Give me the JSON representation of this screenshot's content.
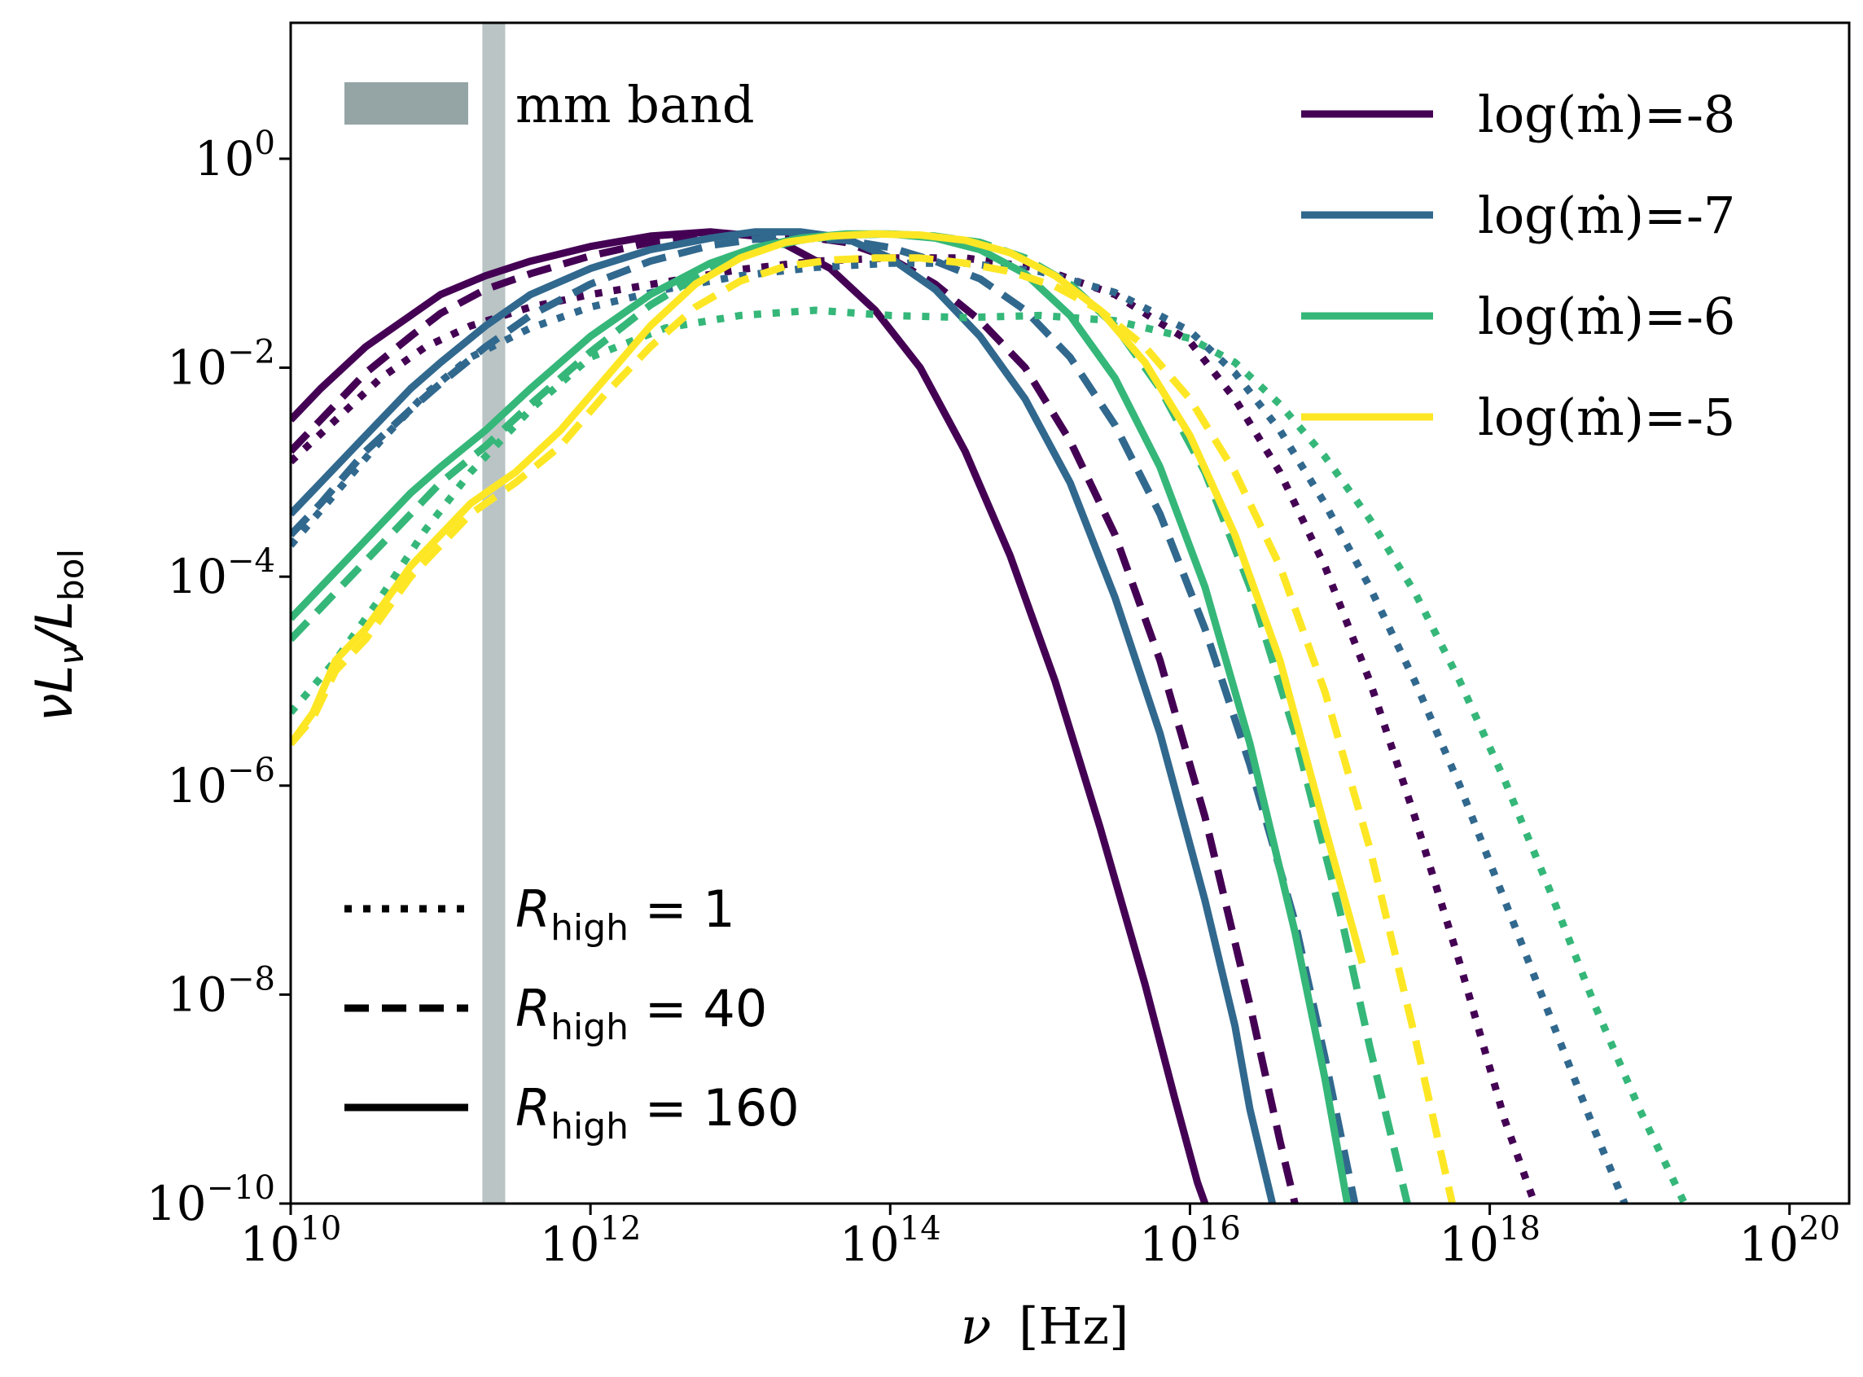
{
  "chart_data": {
    "type": "line",
    "xscale": "log",
    "yscale": "log",
    "xlim": [
      10000000000.0,
      2.5e+20
    ],
    "ylim": [
      1e-10,
      20.0
    ],
    "xlabel_symbol": "ν",
    "xlabel_unit": "[Hz]",
    "ylabel": "νLν/Lbol",
    "x_ticks": [
      {
        "base": "10",
        "exp": "10",
        "value": 10000000000.0
      },
      {
        "base": "10",
        "exp": "12",
        "value": 1000000000000.0
      },
      {
        "base": "10",
        "exp": "14",
        "value": 100000000000000.0
      },
      {
        "base": "10",
        "exp": "16",
        "value": 1e+16
      },
      {
        "base": "10",
        "exp": "18",
        "value": 1e+18
      },
      {
        "base": "10",
        "exp": "20",
        "value": 1e+20
      }
    ],
    "y_ticks": [
      {
        "base": "10",
        "exp": "−10",
        "value": 1e-10
      },
      {
        "base": "10",
        "exp": "−8",
        "value": 1e-08
      },
      {
        "base": "10",
        "exp": "−6",
        "value": 1e-06
      },
      {
        "base": "10",
        "exp": "−4",
        "value": 0.0001
      },
      {
        "base": "10",
        "exp": "−2",
        "value": 0.01
      },
      {
        "base": "10",
        "exp": "0",
        "value": 1
      }
    ],
    "band": {
      "label": "mm band",
      "x_from": 190000000000.0,
      "x_to": 270000000000.0,
      "color": "#95a5a6"
    },
    "colors": {
      "-8": "#440154",
      "-7": "#31688e",
      "-6": "#35b779",
      "-5": "#fde725"
    },
    "legend_mdot": [
      {
        "label": "log(ṁ)=-8",
        "key": "-8"
      },
      {
        "label": "log(ṁ)=-7",
        "key": "-7"
      },
      {
        "label": "log(ṁ)=-6",
        "key": "-6"
      },
      {
        "label": "log(ṁ)=-5",
        "key": "-5"
      }
    ],
    "legend_rhigh": [
      {
        "label_sym": "R",
        "label_sub": "high",
        "label_val": "= 1",
        "style": "dotted"
      },
      {
        "label_sym": "R",
        "label_sub": "high",
        "label_val": "= 40",
        "style": "dashed"
      },
      {
        "label_sym": "R",
        "label_sub": "high",
        "label_val": "= 160",
        "style": "solid"
      }
    ],
    "series": [
      {
        "name": "log(ṁ)=-8, R_high=160",
        "mdot": "-8",
        "style": "solid",
        "x": [
          10,
          10.2,
          10.5,
          10.8,
          11,
          11.3,
          11.6,
          12,
          12.4,
          12.8,
          13.1,
          13.3,
          13.6,
          13.9,
          14.2,
          14.5,
          14.8,
          15.1,
          15.4,
          15.7,
          15.9,
          16.05,
          16.1
        ],
        "y": [
          -2.5,
          -2.2,
          -1.8,
          -1.5,
          -1.3,
          -1.12,
          -0.98,
          -0.84,
          -0.74,
          -0.7,
          -0.74,
          -0.82,
          -1.05,
          -1.45,
          -2.0,
          -2.8,
          -3.8,
          -5.0,
          -6.4,
          -7.9,
          -9.0,
          -9.8,
          -10
        ]
      },
      {
        "name": "log(ṁ)=-8, R_high=40",
        "mdot": "-8",
        "style": "dashed",
        "x": [
          10,
          10.2,
          10.5,
          10.8,
          11,
          11.3,
          11.6,
          12,
          12.4,
          12.8,
          13.1,
          13.4,
          13.7,
          14.0,
          14.3,
          14.6,
          14.9,
          15.2,
          15.5,
          15.8,
          16.1,
          16.4,
          16.6,
          16.7
        ],
        "y": [
          -2.8,
          -2.5,
          -2.05,
          -1.7,
          -1.48,
          -1.25,
          -1.1,
          -0.93,
          -0.8,
          -0.74,
          -0.72,
          -0.74,
          -0.8,
          -0.95,
          -1.2,
          -1.55,
          -2.0,
          -2.7,
          -3.6,
          -4.8,
          -6.3,
          -8.1,
          -9.4,
          -10
        ]
      },
      {
        "name": "log(ṁ)=-8, R_high=1",
        "mdot": "-8",
        "style": "dotted",
        "x": [
          10,
          10.3,
          10.6,
          10.9,
          11.2,
          11.6,
          12,
          12.5,
          13,
          13.5,
          14,
          14.5,
          15,
          15.5,
          16,
          16.3,
          16.6,
          16.9,
          17.2,
          17.5,
          17.8,
          18.1,
          18.3
        ],
        "y": [
          -2.9,
          -2.5,
          -2.1,
          -1.8,
          -1.6,
          -1.42,
          -1.3,
          -1.18,
          -1.06,
          -0.98,
          -0.95,
          -0.95,
          -1.05,
          -1.3,
          -1.75,
          -2.3,
          -3.0,
          -3.9,
          -5.0,
          -6.3,
          -7.7,
          -9.2,
          -10
        ]
      },
      {
        "name": "log(ṁ)=-7, R_high=160",
        "mdot": "-7",
        "style": "solid",
        "x": [
          10,
          10.2,
          10.5,
          10.8,
          11,
          11.3,
          11.6,
          12,
          12.4,
          12.8,
          13.1,
          13.4,
          13.7,
          14.0,
          14.3,
          14.6,
          14.9,
          15.2,
          15.5,
          15.8,
          16.1,
          16.3,
          16.4,
          16.55
        ],
        "y": [
          -3.4,
          -3.1,
          -2.65,
          -2.2,
          -1.95,
          -1.6,
          -1.3,
          -1.05,
          -0.87,
          -0.76,
          -0.7,
          -0.7,
          -0.76,
          -0.95,
          -1.25,
          -1.7,
          -2.3,
          -3.1,
          -4.2,
          -5.5,
          -7.1,
          -8.3,
          -9.1,
          -10
        ]
      },
      {
        "name": "log(ṁ)=-7, R_high=40",
        "mdot": "-7",
        "style": "dashed",
        "x": [
          10,
          10.2,
          10.5,
          10.8,
          11,
          11.3,
          11.6,
          12,
          12.4,
          12.8,
          13.1,
          13.4,
          13.7,
          14.0,
          14.3,
          14.6,
          14.9,
          15.2,
          15.5,
          15.8,
          16.1,
          16.4,
          16.7,
          16.9,
          17.1
        ],
        "y": [
          -3.6,
          -3.3,
          -2.8,
          -2.4,
          -2.15,
          -1.8,
          -1.5,
          -1.2,
          -0.98,
          -0.83,
          -0.77,
          -0.76,
          -0.78,
          -0.85,
          -0.98,
          -1.15,
          -1.45,
          -1.9,
          -2.55,
          -3.4,
          -4.5,
          -5.8,
          -7.3,
          -8.6,
          -10
        ]
      },
      {
        "name": "log(ṁ)=-7, R_high=1",
        "mdot": "-7",
        "style": "dotted",
        "x": [
          10,
          10.3,
          10.6,
          10.9,
          11.2,
          11.6,
          12,
          12.5,
          13,
          13.5,
          14,
          14.5,
          15,
          15.5,
          16,
          16.3,
          16.6,
          16.9,
          17.2,
          17.5,
          17.8,
          18.1,
          18.4,
          18.7,
          18.9
        ],
        "y": [
          -3.7,
          -3.2,
          -2.7,
          -2.25,
          -1.9,
          -1.62,
          -1.42,
          -1.25,
          -1.12,
          -1.04,
          -1.0,
          -1.0,
          -1.08,
          -1.28,
          -1.65,
          -2.05,
          -2.6,
          -3.3,
          -4.1,
          -5.0,
          -6.0,
          -7.1,
          -8.2,
          -9.3,
          -10
        ]
      },
      {
        "name": "log(ṁ)=-6, R_high=160",
        "mdot": "-6",
        "style": "solid",
        "x": [
          10,
          10.2,
          10.5,
          10.8,
          11,
          11.3,
          11.6,
          12,
          12.4,
          12.8,
          13.1,
          13.4,
          13.7,
          14.0,
          14.3,
          14.6,
          14.9,
          15.2,
          15.5,
          15.8,
          16.1,
          16.4,
          16.7,
          16.9,
          17.05
        ],
        "y": [
          -4.4,
          -4.1,
          -3.65,
          -3.2,
          -2.95,
          -2.6,
          -2.2,
          -1.7,
          -1.3,
          -1.0,
          -0.85,
          -0.76,
          -0.72,
          -0.72,
          -0.76,
          -0.87,
          -1.1,
          -1.5,
          -2.1,
          -2.95,
          -4.1,
          -5.6,
          -7.4,
          -8.8,
          -10
        ]
      },
      {
        "name": "log(ṁ)=-6, R_high=40",
        "mdot": "-6",
        "style": "dashed",
        "x": [
          10,
          10.2,
          10.5,
          10.8,
          11,
          11.3,
          11.6,
          12,
          12.4,
          12.8,
          13.1,
          13.4,
          13.7,
          14.0,
          14.3,
          14.6,
          14.9,
          15.2,
          15.5,
          15.8,
          16.1,
          16.4,
          16.7,
          17.0,
          17.2,
          17.45
        ],
        "y": [
          -4.6,
          -4.3,
          -3.85,
          -3.4,
          -3.1,
          -2.75,
          -2.35,
          -1.85,
          -1.4,
          -1.05,
          -0.88,
          -0.78,
          -0.73,
          -0.72,
          -0.74,
          -0.8,
          -0.95,
          -1.2,
          -1.6,
          -2.2,
          -3.0,
          -4.1,
          -5.5,
          -7.2,
          -8.5,
          -10
        ]
      },
      {
        "name": "log(ṁ)=-6, R_high=1",
        "mdot": "-6",
        "style": "dotted",
        "x": [
          10,
          10.3,
          10.6,
          10.9,
          11.2,
          11.6,
          12,
          12.5,
          13,
          13.5,
          14,
          14.5,
          15,
          15.5,
          16,
          16.3,
          16.6,
          16.9,
          17.2,
          17.5,
          17.8,
          18.1,
          18.4,
          18.7,
          19.0,
          19.3
        ],
        "y": [
          -5.3,
          -4.8,
          -4.2,
          -3.55,
          -3.0,
          -2.4,
          -1.9,
          -1.62,
          -1.5,
          -1.45,
          -1.5,
          -1.52,
          -1.5,
          -1.55,
          -1.72,
          -1.95,
          -2.35,
          -2.85,
          -3.45,
          -4.15,
          -5.0,
          -5.95,
          -7.0,
          -8.1,
          -9.1,
          -10
        ]
      },
      {
        "name": "log(ṁ)=-5, R_high=160",
        "mdot": "-5",
        "style": "solid",
        "x": [
          10,
          10.15,
          10.3,
          10.5,
          10.7,
          10.8,
          11,
          11.2,
          11.5,
          11.8,
          12.1,
          12.4,
          12.7,
          13.0,
          13.3,
          13.6,
          13.9,
          14.2,
          14.5,
          14.8,
          15.1,
          15.4,
          15.7,
          16.0,
          16.3,
          16.6,
          16.9,
          17.15
        ],
        "y": [
          -5.6,
          -5.3,
          -4.8,
          -4.5,
          -4.1,
          -3.9,
          -3.6,
          -3.3,
          -3.0,
          -2.6,
          -2.1,
          -1.6,
          -1.2,
          -0.95,
          -0.8,
          -0.74,
          -0.72,
          -0.73,
          -0.78,
          -0.9,
          -1.12,
          -1.45,
          -1.95,
          -2.65,
          -3.6,
          -4.8,
          -6.4,
          -7.7
        ]
      },
      {
        "name": "log(ṁ)=-5, R_high=40",
        "mdot": "-5",
        "style": "dashed",
        "x": [
          10,
          10.15,
          10.3,
          10.5,
          10.7,
          10.8,
          11,
          11.2,
          11.5,
          11.8,
          12.1,
          12.4,
          12.7,
          13.0,
          13.3,
          13.6,
          13.9,
          14.2,
          14.5,
          14.8,
          15.1,
          15.4,
          15.7,
          16.0,
          16.3,
          16.6,
          16.9,
          17.2,
          17.5,
          17.75
        ],
        "y": [
          -5.6,
          -5.35,
          -4.9,
          -4.6,
          -4.2,
          -4.0,
          -3.7,
          -3.4,
          -3.1,
          -2.75,
          -2.25,
          -1.8,
          -1.42,
          -1.17,
          -1.03,
          -0.97,
          -0.95,
          -0.95,
          -1.0,
          -1.08,
          -1.22,
          -1.45,
          -1.8,
          -2.3,
          -3.0,
          -3.9,
          -5.1,
          -6.6,
          -8.4,
          -10
        ]
      }
    ]
  }
}
